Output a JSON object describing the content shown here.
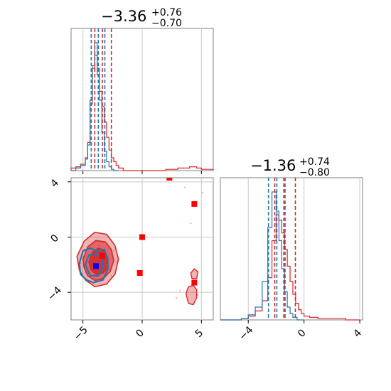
{
  "colors": {
    "red": "#d62728",
    "blue": "#1f77b4",
    "marker_red": "#ff0000",
    "marker_blue": "#0000ff",
    "frame": "#808080",
    "grid": "#c8c8c8"
  },
  "chart_data": [
    {
      "type": "histogram",
      "panel": "top-left",
      "title": {
        "value": "−3.36",
        "upper": "+0.76",
        "lower": "−0.70"
      },
      "xlim": [
        -6,
        6
      ],
      "x_ticks": [
        -5,
        0,
        5
      ],
      "quantile_lines": {
        "red": [
          -4.0,
          -3.36,
          -2.6
        ],
        "blue": [
          -4.3,
          -3.7,
          -3.15
        ]
      },
      "series": [
        {
          "color": "red",
          "bin_edges": [
            -6.0,
            -5.6,
            -5.2,
            -4.8,
            -4.6,
            -4.4,
            -4.2,
            -4.0,
            -3.8,
            -3.6,
            -3.4,
            -3.2,
            -3.0,
            -2.8,
            -2.6,
            -2.4,
            -2.2,
            -2.0,
            -1.6,
            2.0,
            3.0,
            4.0,
            4.6,
            5.0,
            6.0
          ],
          "counts": [
            0.02,
            0.03,
            0.05,
            0.1,
            0.22,
            0.55,
            0.8,
            0.9,
            0.75,
            0.62,
            0.5,
            0.38,
            0.26,
            0.16,
            0.1,
            0.07,
            0.04,
            0.02,
            0.0,
            0.01,
            0.02,
            0.03,
            0.02,
            0.01
          ]
        },
        {
          "color": "blue",
          "bin_edges": [
            -6.0,
            -5.6,
            -5.2,
            -4.8,
            -4.6,
            -4.4,
            -4.2,
            -4.0,
            -3.8,
            -3.6,
            -3.4,
            -3.2,
            -3.0,
            -2.8,
            -2.6,
            -2.4,
            -2.0
          ],
          "counts": [
            0.0,
            0.02,
            0.04,
            0.09,
            0.2,
            0.52,
            0.82,
            1.0,
            0.8,
            0.55,
            0.3,
            0.15,
            0.07,
            0.03,
            0.01,
            0.0
          ]
        }
      ]
    },
    {
      "type": "histogram",
      "panel": "bottom-right",
      "title": {
        "value": "−1.36",
        "upper": "+0.74",
        "lower": "−0.80"
      },
      "xlim": [
        -6,
        4.2
      ],
      "x_ticks": [
        -4,
        0,
        4
      ],
      "quantile_lines": {
        "red": [
          -2.1,
          -1.36,
          -0.62
        ],
        "blue": [
          -2.55,
          -1.95,
          -1.45
        ]
      },
      "series": [
        {
          "color": "red",
          "bin_edges": [
            -6.0,
            -4.5,
            -4.0,
            -3.5,
            -3.0,
            -2.6,
            -2.3,
            -2.0,
            -1.8,
            -1.6,
            -1.4,
            -1.2,
            -1.0,
            -0.8,
            -0.6,
            -0.4,
            -0.2,
            0.0,
            0.4,
            1.0,
            2.0,
            3.0,
            4.0
          ],
          "counts": [
            0.0,
            0.01,
            0.03,
            0.07,
            0.15,
            0.33,
            0.62,
            0.82,
            0.78,
            0.68,
            0.55,
            0.42,
            0.3,
            0.2,
            0.13,
            0.08,
            0.05,
            0.03,
            0.02,
            0.01,
            0.01,
            0.0
          ]
        },
        {
          "color": "blue",
          "bin_edges": [
            -6.0,
            -4.5,
            -4.0,
            -3.5,
            -3.0,
            -2.6,
            -2.3,
            -2.0,
            -1.8,
            -1.6,
            -1.4,
            -1.2,
            -1.0,
            -0.8,
            -0.5,
            0.0
          ],
          "counts": [
            0.0,
            0.01,
            0.04,
            0.1,
            0.3,
            0.72,
            1.0,
            0.85,
            0.62,
            0.4,
            0.22,
            0.1,
            0.05,
            0.02,
            0.0
          ]
        }
      ]
    },
    {
      "type": "scatter",
      "panel": "bottom-left",
      "xlim": [
        -6,
        6
      ],
      "ylim": [
        -6,
        4.3
      ],
      "x_ticks": [
        -5,
        0,
        5
      ],
      "y_ticks": [
        -4,
        0,
        4
      ],
      "contours": {
        "red": [
          [
            [
              -5.5,
              -1.4
            ],
            [
              -4.9,
              -0.3
            ],
            [
              -4.0,
              0.35
            ],
            [
              -3.0,
              0.2
            ],
            [
              -2.3,
              -0.6
            ],
            [
              -2.0,
              -1.6
            ],
            [
              -2.3,
              -2.7
            ],
            [
              -3.0,
              -3.4
            ],
            [
              -4.0,
              -3.6
            ],
            [
              -4.8,
              -3.1
            ],
            [
              -5.3,
              -2.4
            ]
          ],
          [
            [
              -5.0,
              -1.6
            ],
            [
              -4.6,
              -0.7
            ],
            [
              -3.9,
              -0.25
            ],
            [
              -3.1,
              -0.35
            ],
            [
              -2.6,
              -0.9
            ],
            [
              -2.4,
              -1.7
            ],
            [
              -2.7,
              -2.5
            ],
            [
              -3.3,
              -3.0
            ],
            [
              -4.0,
              -3.15
            ],
            [
              -4.6,
              -2.8
            ],
            [
              -4.9,
              -2.2
            ]
          ],
          [
            [
              -4.5,
              -1.8
            ],
            [
              -4.2,
              -1.1
            ],
            [
              -3.7,
              -0.8
            ],
            [
              -3.2,
              -0.95
            ],
            [
              -2.9,
              -1.5
            ],
            [
              -2.9,
              -2.2
            ],
            [
              -3.3,
              -2.6
            ],
            [
              -3.9,
              -2.7
            ],
            [
              -4.3,
              -2.4
            ]
          ]
        ],
        "red_small": [
          [
            [
              3.7,
              -4.1
            ],
            [
              3.9,
              -3.6
            ],
            [
              4.3,
              -3.5
            ],
            [
              4.6,
              -3.8
            ],
            [
              4.6,
              -4.4
            ],
            [
              4.3,
              -4.9
            ],
            [
              3.9,
              -4.8
            ]
          ],
          [
            [
              4.1,
              -2.6
            ],
            [
              4.4,
              -2.3
            ],
            [
              4.7,
              -2.5
            ],
            [
              4.6,
              -3.0
            ],
            [
              4.2,
              -3.0
            ]
          ]
        ],
        "blue": [
          [
            [
              -5.3,
              -1.9
            ],
            [
              -5.0,
              -1.0
            ],
            [
              -4.4,
              -0.8
            ],
            [
              -3.8,
              -1.0
            ],
            [
              -3.2,
              -0.9
            ],
            [
              -2.9,
              -1.6
            ],
            [
              -2.9,
              -2.3
            ],
            [
              -3.3,
              -3.1
            ],
            [
              -4.1,
              -3.3
            ],
            [
              -4.7,
              -3.1
            ],
            [
              -5.2,
              -2.7
            ]
          ],
          [
            [
              -4.8,
              -2.0
            ],
            [
              -4.5,
              -1.3
            ],
            [
              -3.9,
              -1.2
            ],
            [
              -3.4,
              -1.5
            ],
            [
              -3.3,
              -2.2
            ],
            [
              -3.7,
              -2.8
            ],
            [
              -4.4,
              -2.8
            ]
          ]
        ]
      },
      "markers": {
        "red": [
          [
            -3.36,
            -1.36
          ],
          [
            0.0,
            0.0
          ],
          [
            -0.2,
            -2.6
          ],
          [
            4.4,
            2.4
          ],
          [
            4.4,
            -3.3
          ],
          [
            2.3,
            4.3
          ]
        ],
        "blue": [
          [
            -3.9,
            -2.1
          ]
        ]
      },
      "samples": {
        "red": [
          [
            -4.1,
            -1.5
          ],
          [
            -3.2,
            -2.0
          ],
          [
            -2.4,
            -1.0
          ],
          [
            -4.6,
            -2.3
          ],
          [
            -3.6,
            -0.6
          ],
          [
            -2.6,
            -2.8
          ],
          [
            -4.4,
            -3.2
          ],
          [
            -3.0,
            -3.4
          ],
          [
            -5.2,
            -1.9
          ],
          [
            -2.2,
            -1.8
          ],
          [
            3.2,
            -3.9
          ],
          [
            4.7,
            -4.2
          ],
          [
            2.9,
            -4.4
          ],
          [
            4.1,
            1.0
          ],
          [
            3.6,
            3.6
          ],
          [
            5.1,
            3.2
          ]
        ],
        "blue": [
          [
            -4.4,
            -1.8
          ],
          [
            -3.6,
            -2.5
          ],
          [
            -4.0,
            -3.0
          ],
          [
            -4.8,
            -2.6
          ],
          [
            -3.4,
            -1.4
          ],
          [
            -4.2,
            -1.2
          ],
          [
            -3.1,
            -2.9
          ],
          [
            -5.0,
            -2.1
          ]
        ]
      }
    }
  ]
}
